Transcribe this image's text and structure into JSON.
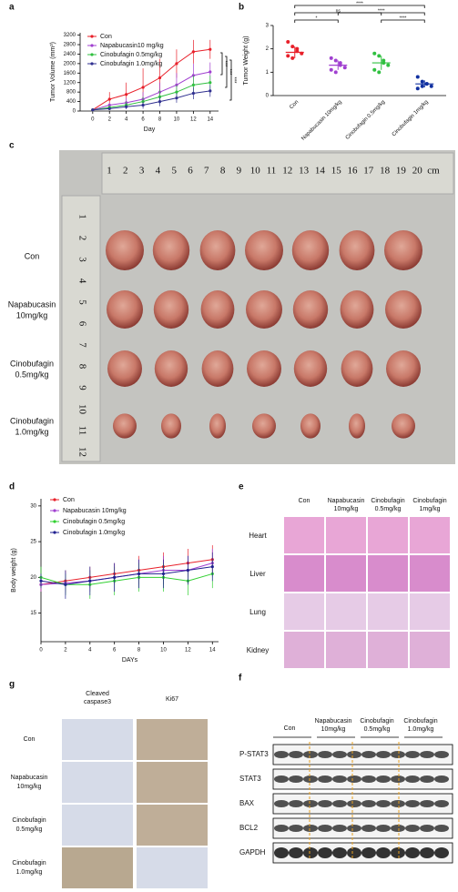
{
  "chart_data": [
    {
      "panel": "a",
      "type": "line",
      "x_label": "Day",
      "y_label": "Tumor Volume (mm³)",
      "x": [
        0,
        2,
        4,
        6,
        8,
        10,
        12,
        14
      ],
      "xlim": [
        -1.5,
        15
      ],
      "xticks": [
        0,
        2,
        4,
        6,
        8,
        10,
        12,
        14
      ],
      "ylim": [
        0,
        3300
      ],
      "yticks": [
        0,
        400,
        800,
        1200,
        1600,
        2000,
        2400,
        2800,
        3200
      ],
      "legend": "upper left",
      "series": [
        {
          "name": "Con",
          "color": "#e8202a",
          "values": [
            50,
            500,
            700,
            1000,
            1400,
            2000,
            2500,
            2600
          ],
          "errors": [
            20,
            300,
            500,
            800,
            800,
            600,
            500,
            400
          ]
        },
        {
          "name": "Napabucasin10 mg/kg",
          "color": "#a040d0",
          "values": [
            50,
            250,
            350,
            500,
            800,
            1100,
            1500,
            1650
          ],
          "errors": [
            20,
            100,
            200,
            300,
            400,
            500,
            500,
            400
          ]
        },
        {
          "name": "Cinobufagin 0.5mg/kg",
          "color": "#30c040",
          "values": [
            50,
            150,
            250,
            400,
            600,
            800,
            1100,
            1200
          ],
          "errors": [
            20,
            80,
            150,
            200,
            300,
            300,
            400,
            300
          ]
        },
        {
          "name": "Cinobufagin 1.0mg/kg",
          "color": "#303090",
          "values": [
            50,
            100,
            180,
            250,
            400,
            550,
            750,
            850
          ],
          "errors": [
            20,
            50,
            100,
            150,
            200,
            200,
            250,
            250
          ]
        }
      ],
      "annotations": [
        "***",
        "***",
        "***"
      ]
    },
    {
      "panel": "b",
      "type": "dot",
      "y_label": "Tumor Weight (g)",
      "categories": [
        "Con",
        "Napabucasin 10mg/kg",
        "Cinobufagin 0.5mg/kg",
        "Cinobufagin 1mg/kg"
      ],
      "colors": [
        "#e8202a",
        "#a040d0",
        "#30c040",
        "#1030a0"
      ],
      "points": [
        [
          2.3,
          2.1,
          1.9,
          1.8,
          1.7,
          1.6,
          2.0
        ],
        [
          1.6,
          1.5,
          1.3,
          1.2,
          1.1,
          1.0,
          1.4
        ],
        [
          1.8,
          1.7,
          1.5,
          1.3,
          1.1,
          1.0,
          1.4
        ],
        [
          0.8,
          0.6,
          0.5,
          0.4,
          0.3,
          0.4,
          0.5
        ]
      ],
      "means": [
        1.85,
        1.3,
        1.4,
        0.5
      ],
      "errors": [
        0.25,
        0.2,
        0.3,
        0.15
      ],
      "ylim": [
        0,
        3
      ],
      "yticks": [
        0,
        1,
        2,
        3
      ],
      "significance": [
        "****",
        "ns",
        "*",
        "****",
        "****"
      ]
    },
    {
      "panel": "d",
      "type": "line",
      "x_label": "DAYs",
      "y_label": "Body weight (g)",
      "x": [
        0,
        2,
        4,
        6,
        8,
        10,
        12,
        14
      ],
      "xlim": [
        0,
        14.5
      ],
      "xticks": [
        0,
        2,
        4,
        6,
        8,
        10,
        12,
        14
      ],
      "ylim": [
        11,
        31
      ],
      "yticks": [
        15,
        20,
        25,
        30
      ],
      "legend": "upper left",
      "series": [
        {
          "name": "Con",
          "color": "#e8202a",
          "values": [
            19,
            19.5,
            20,
            20.5,
            21,
            21.5,
            22,
            22.5
          ],
          "errors": [
            1,
            1.5,
            1.5,
            1.5,
            2,
            2,
            2,
            2
          ]
        },
        {
          "name": "Napabucasin 10mg/kg",
          "color": "#a040d0",
          "values": [
            19,
            19.2,
            19.5,
            20,
            20.5,
            21,
            21,
            22
          ],
          "errors": [
            1,
            1.5,
            1.5,
            2,
            2,
            2,
            2,
            2
          ]
        },
        {
          "name": "Cinobufagin  0.5mg/kg",
          "color": "#30d030",
          "values": [
            20,
            19,
            19,
            19.5,
            20,
            20,
            19.5,
            20.5
          ],
          "errors": [
            1.5,
            1.5,
            2,
            2,
            2,
            2,
            2,
            2
          ]
        },
        {
          "name": "Cinobufagin  1.0mg/kg",
          "color": "#202090",
          "values": [
            19.5,
            19,
            19.5,
            20,
            20.5,
            20.5,
            21,
            21.5
          ],
          "errors": [
            1,
            2,
            2,
            2,
            2,
            2,
            2,
            2
          ]
        }
      ]
    }
  ],
  "photo": {
    "panel": "c",
    "rows": [
      [
        "Con"
      ],
      [
        "Napabucasin",
        "10mg/kg"
      ],
      [
        "Cinobufagin",
        "0.5mg/kg"
      ],
      [
        "Cinobufagin",
        "1.0mg/kg"
      ]
    ],
    "ruler_top": [
      "1",
      "2",
      "3",
      "4",
      "5",
      "6",
      "7",
      "8",
      "9",
      "10",
      "11",
      "12",
      "13",
      "14",
      "15",
      "16",
      "17",
      "18",
      "19",
      "20",
      "cm"
    ],
    "ruler_left": [
      "1",
      "2",
      "3",
      "4",
      "5",
      "6",
      "7",
      "8",
      "9",
      "10",
      "11",
      "12"
    ]
  },
  "histology": {
    "panel": "e",
    "columns": [
      [
        "Con"
      ],
      [
        "Napabucasin",
        "10mg/kg"
      ],
      [
        "Cinobufagin",
        "0.5mg/kg"
      ],
      [
        "Cinobufagin",
        "1mg/kg"
      ]
    ],
    "rows": [
      "Heart",
      "Liver",
      "Lung",
      "Kidney"
    ]
  },
  "western_blot": {
    "panel": "f",
    "columns": [
      [
        "Con"
      ],
      [
        "Napabucasin",
        "10mg/kg"
      ],
      [
        "Cinobufagin",
        "0.5mg/kg"
      ],
      [
        "Cinobufagin",
        "1.0mg/kg"
      ]
    ],
    "rows": [
      "P-STAT3",
      "STAT3",
      "BAX",
      "BCL2",
      "GAPDH"
    ]
  },
  "ihc": {
    "panel": "g",
    "columns": [
      [
        "Cleaved",
        "caspase3"
      ],
      [
        "Ki67"
      ]
    ],
    "rows": [
      [
        "Con"
      ],
      [
        "Napabucasin",
        "10mg/kg"
      ],
      [
        "Cinobufagin",
        "0.5mg/kg"
      ],
      [
        "Cinobufagin",
        "1.0mg/kg"
      ]
    ]
  }
}
